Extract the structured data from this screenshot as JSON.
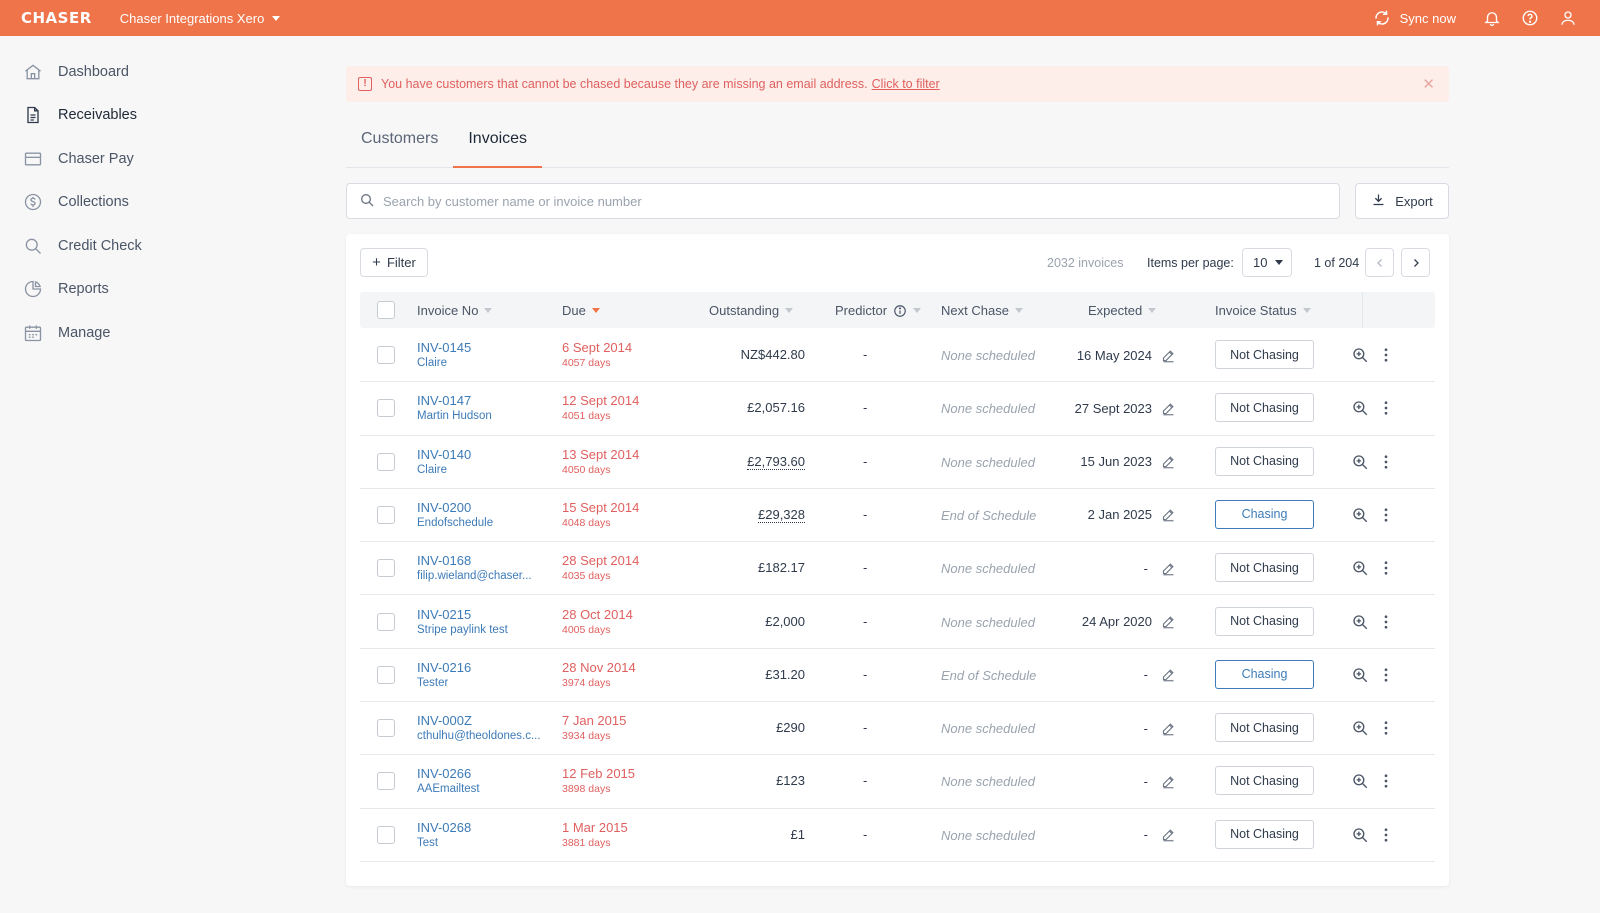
{
  "topbar": {
    "logo": "CHASER",
    "org_name": "Chaser Integrations Xero",
    "sync_label": "Sync now",
    "accent_color": "#ef744a"
  },
  "sidebar": {
    "items": [
      {
        "label": "Dashboard",
        "icon": "home-icon"
      },
      {
        "label": "Receivables",
        "icon": "document-icon",
        "active": true
      },
      {
        "label": "Chaser Pay",
        "icon": "credit-card-icon"
      },
      {
        "label": "Collections",
        "icon": "dollar-circle-icon"
      },
      {
        "label": "Credit Check",
        "icon": "search-icon"
      },
      {
        "label": "Reports",
        "icon": "pie-chart-icon"
      },
      {
        "label": "Manage",
        "icon": "calendar-icon"
      }
    ]
  },
  "alert": {
    "message": "You have customers that cannot be chased because they are missing an email address.",
    "link": "Click to filter"
  },
  "tabs": [
    {
      "label": "Customers",
      "active": false
    },
    {
      "label": "Invoices",
      "active": true
    }
  ],
  "search": {
    "placeholder": "Search by customer name or invoice number"
  },
  "export_label": "Export",
  "toolbar": {
    "filter_label": "Filter",
    "count": "2032 invoices",
    "items_per_page_label": "Items per page:",
    "items_per_page": "10",
    "page_of": "1 of 204"
  },
  "table": {
    "headers": {
      "invoice_no": "Invoice No",
      "due": "Due",
      "outstanding": "Outstanding",
      "predictor": "Predictor",
      "next_chase": "Next Chase",
      "expected": "Expected",
      "invoice_status": "Invoice Status"
    },
    "rows": [
      {
        "invoice": "INV-0145",
        "customer": "Claire",
        "due": "6 Sept 2014",
        "days": "4057 days",
        "outstanding": "NZ$442.80",
        "predictor": "-",
        "next_chase": "None scheduled",
        "expected": "16 May 2024",
        "status": "Not Chasing"
      },
      {
        "invoice": "INV-0147",
        "customer": "Martin Hudson",
        "due": "12 Sept 2014",
        "days": "4051 days",
        "outstanding": "£2,057.16",
        "predictor": "-",
        "next_chase": "None scheduled",
        "expected": "27 Sept 2023",
        "status": "Not Chasing"
      },
      {
        "invoice": "INV-0140",
        "customer": "Claire",
        "due": "13 Sept 2014",
        "days": "4050 days",
        "outstanding": "£2,793.60",
        "predictor": "-",
        "next_chase": "None scheduled",
        "expected": "15 Jun 2023",
        "status": "Not Chasing"
      },
      {
        "invoice": "INV-0200",
        "customer": "Endofschedule",
        "due": "15 Sept 2014",
        "days": "4048 days",
        "outstanding": "£29,328",
        "predictor": "-",
        "next_chase": "End of Schedule",
        "expected": "2 Jan 2025",
        "status": "Chasing"
      },
      {
        "invoice": "INV-0168",
        "customer": "filip.wieland@chaser...",
        "due": "28 Sept 2014",
        "days": "4035 days",
        "outstanding": "£182.17",
        "predictor": "-",
        "next_chase": "None scheduled",
        "expected": "-",
        "status": "Not Chasing"
      },
      {
        "invoice": "INV-0215",
        "customer": "Stripe paylink test",
        "due": "28 Oct 2014",
        "days": "4005 days",
        "outstanding": "£2,000",
        "predictor": "-",
        "next_chase": "None scheduled",
        "expected": "24 Apr 2020",
        "status": "Not Chasing"
      },
      {
        "invoice": "INV-0216",
        "customer": "Tester",
        "due": "28 Nov 2014",
        "days": "3974 days",
        "outstanding": "£31.20",
        "predictor": "-",
        "next_chase": "End of Schedule",
        "expected": "-",
        "status": "Chasing"
      },
      {
        "invoice": "INV-000Z",
        "customer": "cthulhu@theoldones.c...",
        "due": "7 Jan 2015",
        "days": "3934 days",
        "outstanding": "£290",
        "predictor": "-",
        "next_chase": "None scheduled",
        "expected": "-",
        "status": "Not Chasing"
      },
      {
        "invoice": "INV-0266",
        "customer": "AAEmailtest",
        "due": "12 Feb 2015",
        "days": "3898 days",
        "outstanding": "£123",
        "predictor": "-",
        "next_chase": "None scheduled",
        "expected": "-",
        "status": "Not Chasing"
      },
      {
        "invoice": "INV-0268",
        "customer": "Test",
        "due": "1 Mar 2015",
        "days": "3881 days",
        "outstanding": "£1",
        "predictor": "-",
        "next_chase": "None scheduled",
        "expected": "-",
        "status": "Not Chasing"
      }
    ]
  }
}
